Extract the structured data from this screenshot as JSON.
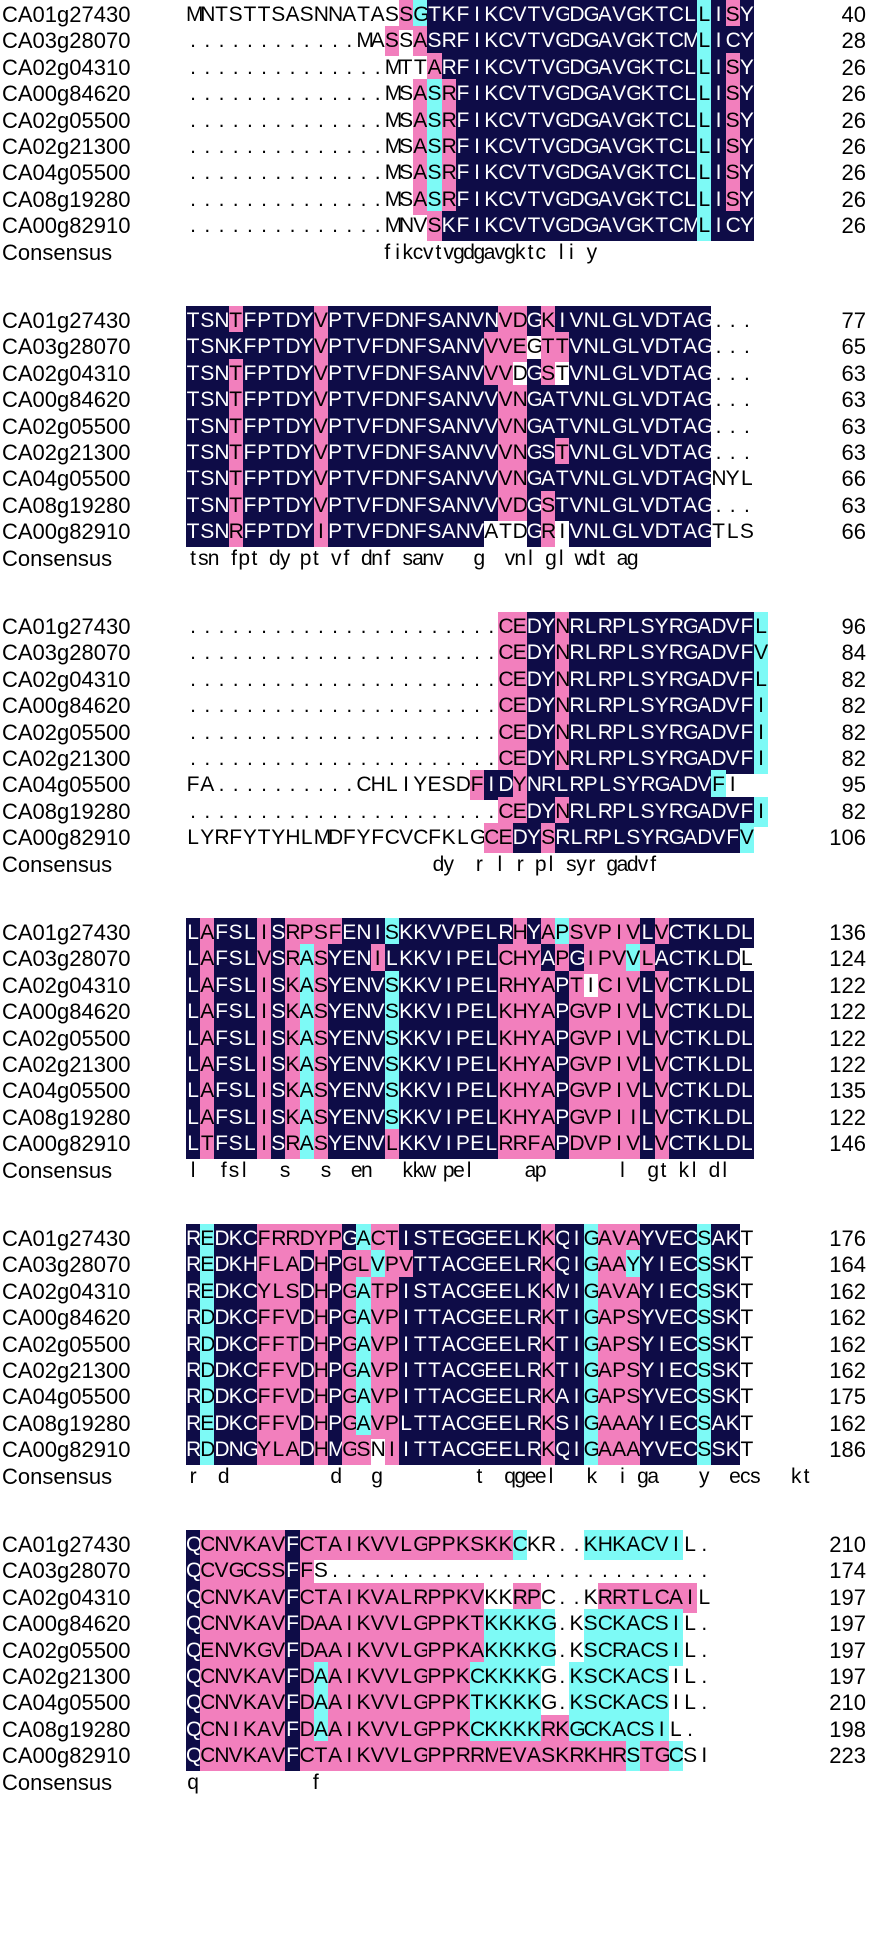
{
  "colors": {
    "identical": "#0e0c47",
    "high_similarity": "#f27fbd",
    "medium_similarity": "#7dfaf6",
    "background": "#ffffff"
  },
  "legend_key": "k = navy (identical), p = pink, c = cyan, n = none",
  "blocks": [
    {
      "rows": [
        {
          "name": "CA01g27430",
          "seq": "MNTSTTSASNNATASSGTKFIKCVTVGDGAVGKTCLLISY",
          "shade": "nnnnnnnnnnnnnnnpckkkkkkkkkkkkkkkkkkkckpk",
          "num": "40"
        },
        {
          "name": "CA03g28070",
          "seq": "............MASSASRFIKCVTVGDGAVGKTCMLICY",
          "shade": "nnnnnnnnnnnnnnpnpkkkkkkkkkkkkkkkkkkkckkk",
          "num": "28"
        },
        {
          "name": "CA02g04310",
          "seq": "..............MTTARFIKCVTVGDGAVGKTCLLISY",
          "shade": "nnnnnnnnnnnnnnnnnpkkkkkkkkkkkkkkkkkkckpk",
          "num": "26"
        },
        {
          "name": "CA00g84620",
          "seq": "..............MSASRFIKCVTVGDGAVGKTCLLISY",
          "shade": "nnnnnnnnnnnnnnnnpcpkkkkkkkkkkkkkkkkkckpk",
          "num": "26"
        },
        {
          "name": "CA02g05500",
          "seq": "..............MSASRFIKCVTVGDGAVGKTCLLISY",
          "shade": "nnnnnnnnnnnnnnnnpcpkkkkkkkkkkkkkkkkkckpk",
          "num": "26"
        },
        {
          "name": "CA02g21300",
          "seq": "..............MSASRFIKCVTVGDGAVGKTCLLISY",
          "shade": "nnnnnnnnnnnnnnnnpcpkkkkkkkkkkkkkkkkkckpk",
          "num": "26"
        },
        {
          "name": "CA04g05500",
          "seq": "..............MSASRFIKCVTVGDGAVGKTCLLISY",
          "shade": "nnnnnnnnnnnnnnnnpcpkkkkkkkkkkkkkkkkkckpk",
          "num": "26"
        },
        {
          "name": "CA08g19280",
          "seq": "..............MSASRFIKCVTVGDGAVGKTCLLISY",
          "shade": "nnnnnnnnnnnnnnnnpcpkkkkkkkkkkkkkkkkkckpk",
          "num": "26"
        },
        {
          "name": "CA00g82910",
          "seq": "..............MNVSKFIKCVTVGDGAVGKTCMLICY",
          "shade": "nnnnnnnnnnnnnnnnnpkkkkkkkkkkkkkkkkkkckkk",
          "num": "26"
        }
      ],
      "consensus": "                   fikcvtvgdgavgktc li y"
    },
    {
      "rows": [
        {
          "name": "CA01g27430",
          "seq": "TSNTFPTDYVPTVFDNFSANVNVDGKIVNLGLVDTAG...",
          "shade": "kkkpkkkkkpkkkkkkkkkkkkppkpkkkkkkkkkkknnn",
          "num": "77"
        },
        {
          "name": "CA03g28070",
          "seq": "TSNKFPTDYVPTVFDNFSANVVVEGTTVNLGLVDTAG...",
          "shade": "kkkkkkkkkpkkkkkkkkkkkpppnppkkkkkkkkkknnn",
          "num": "65"
        },
        {
          "name": "CA02g04310",
          "seq": "TSNTFPTDYVPTVFDNFSANVVVDGSTVNLGLVDTAG...",
          "shade": "kkkpkkkkkpkkkkkkkkkkkppnkpnkkkkkkkkkknnn",
          "num": "63"
        },
        {
          "name": "CA00g84620",
          "seq": "TSNTFPTDYVPTVFDNFSANVVVNGATVNLGLVDTAG...",
          "shade": "kkkpkkkkkpkkkkkkkkkkkkppkkkkkkkkkkkkknnn",
          "num": "63"
        },
        {
          "name": "CA02g05500",
          "seq": "TSNTFPTDYVPTVFDNFSANVVVNGATVNLGLVDTAG...",
          "shade": "kkkpkkkkkpkkkkkkkkkkkkppkkkkkkkkkkkkknnn",
          "num": "63"
        },
        {
          "name": "CA02g21300",
          "seq": "TSNTFPTDYVPTVFDNFSANVVVNGSTVNLGLVDTAG...",
          "shade": "kkkpkkkkkpkkkkkkkkkkkkppkkpkkkkkkkkkknnn",
          "num": "63"
        },
        {
          "name": "CA04g05500",
          "seq": "TSNTFPTDYVPTVFDNFSANVVVNGATVNLGLVDTAGNYL",
          "shade": "kkkpkkkkkpkkkkkkkkkkkkppkkkkkkkkkkkkknnn",
          "num": "66"
        },
        {
          "name": "CA08g19280",
          "seq": "TSNTFPTDYVPTVFDNFSANVVVDGSTVNLGLVDTAG...",
          "shade": "kkkpkkkkkpkkkkkkkkkkkkppkpkkkkkkkkkkknnn",
          "num": "63"
        },
        {
          "name": "CA00g82910",
          "seq": "TSNRFPTDYIPTVFDNFSANVATDGRIVNLGLVDTAGTLS",
          "shade": "kkkpkkkkkpkkkkkkkkkkknnnkpnkkkkkkkkkknnn",
          "num": "66"
        }
      ],
      "consensus": "tsn fpt dy pt vf dnf sanv   g  vnl gl wdt ag"
    },
    {
      "rows": [
        {
          "name": "CA01g27430",
          "seq": "......................CEDYNRLRPLSYRGADVFL",
          "shade": "nnnnnnnnnnnnnnnnnnnnnnppkkpkkkkkkkkkkkkkc",
          "num": "96"
        },
        {
          "name": "CA03g28070",
          "seq": "......................CEDYNRLRPLSYRGADVFV",
          "shade": "nnnnnnnnnnnnnnnnnnnnnnppkkpkkkkkkkkkkkkkc",
          "num": "84"
        },
        {
          "name": "CA02g04310",
          "seq": "......................CEDYNRLRPLSYRGADVFL",
          "shade": "nnnnnnnnnnnnnnnnnnnnnnppkkpkkkkkkkkkkkkkc",
          "num": "82"
        },
        {
          "name": "CA00g84620",
          "seq": "......................CEDYNRLRPLSYRGADVFI",
          "shade": "nnnnnnnnnnnnnnnnnnnnnnppkkpkkkkkkkkkkkkkc",
          "num": "82"
        },
        {
          "name": "CA02g05500",
          "seq": "......................CEDYNRLRPLSYRGADVFI",
          "shade": "nnnnnnnnnnnnnnnnnnnnnnppkkpkkkkkkkkkkkkkc",
          "num": "82"
        },
        {
          "name": "CA02g21300",
          "seq": "......................CEDYNRLRPLSYRGADVFI",
          "shade": "nnnnnnnnnnnnnnnnnnnnnnppkkpkkkkkkkkkkkkkc",
          "num": "82"
        },
        {
          "name": "CA04g05500",
          "seq": "FA..........CHLIYESDFIDYNRLRPLSYRGADVFI",
          "shade": "nnnnnnnnnnnnnnnnnnnnpkkpkkkkkkkkkkkkkc",
          "num": "95"
        },
        {
          "name": "CA08g19280",
          "seq": "......................CEDYNRLRPLSYRGADVFI",
          "shade": "nnnnnnnnnnnnnnnnnnnnnnppkkpkkkkkkkkkkkkkc",
          "num": "82"
        },
        {
          "name": "CA00g82910",
          "seq": "LYRFYTYHLMDFYFCVCFKLGCEDYSRLRPLSYRGADVFV",
          "shade": "nnnnnnnnnnnnnnnnnnnnnppkkpkkkkkkkkkkkkkc",
          "num": "106"
        }
      ],
      "consensus": "                        dy  r l r pl syr gadvf"
    },
    {
      "rows": [
        {
          "name": "CA01g27430",
          "seq": "LAFSLISRPSFENISKKVVPELRHYAPSVPIVLVCTKLDL",
          "shade": "kpkkkpkppppkkkckkkkkkkkpkpcpppppkpkkkkkk",
          "num": "136"
        },
        {
          "name": "CA03g28070",
          "seq": "LAFSLVSRASYENILKKVIPELCHYAPGIPVVLACTKLDL",
          "shade": "kpkkkpkpcpkkkpkkkkkkkkpppkpkpppcpkkkkkk",
          "num": "124"
        },
        {
          "name": "CA02g04310",
          "seq": "LAFSLISKASYENVSKKVIPELRHYAPTICIVLVCTKLDL",
          "shade": "kpkkkpkpcpkkkkckkkkkkkppppkpnpppkpkkkkkk",
          "num": "122"
        },
        {
          "name": "CA00g84620",
          "seq": "LAFSLISKASYENVSKKVIPELKHYAPGVPIVLVCTKLDL",
          "shade": "kpkkkpkpcpkkkkckkkkkkkppppkpppppkpkkkkkk",
          "num": "122"
        },
        {
          "name": "CA02g05500",
          "seq": "LAFSLISKASYENVSKKVIPELKHYAPGVPIVLVCTKLDL",
          "shade": "kpkkkpkpcpkkkkckkkkkkkppppkpppppkpkkkkkk",
          "num": "122"
        },
        {
          "name": "CA02g21300",
          "seq": "LAFSLISKASYENVSKKVIPELKHYAPGVPIVLVCTKLDL",
          "shade": "kpkkkpkpcpkkkkckkkkkkkppppkpppppkpkkkkkk",
          "num": "122"
        },
        {
          "name": "CA04g05500",
          "seq": "LAFSLISKASYENVSKKVIPELKHYAPGVPIVLVCTKLDL",
          "shade": "kpkkkpkpcpkkkkckkkkkkkppppkpppppkpkkkkkk",
          "num": "135"
        },
        {
          "name": "CA08g19280",
          "seq": "LAFSLISKASYENVSKKVIPELKHYAPGVPIILVCTKLDL",
          "shade": "kpkkkpkpcpkkkkckkkkkkkppppkpppppkpkkkkkk",
          "num": "122"
        },
        {
          "name": "CA00g82910",
          "seq": "LTFSLISRASYENVLKKVIPELRRFAPDVPIVLVCTKLDL",
          "shade": "kpkkkpkpcpkkkkpkkkkkkkppppkpppppkpkkkkkk",
          "num": "146"
        }
      ],
      "consensus": "l  fsl   s   s  en   kkw pel     ap       l  gt kl dl"
    },
    {
      "rows": [
        {
          "name": "CA01g27430",
          "seq": "REDKCFRRDYPGACTISTEGGEELKKQIGAVAYVECSAKT",
          "shade": "kckkkppppppkcppkkkkkkkkkkpkkcpppkkkkckk",
          "num": "176"
        },
        {
          "name": "CA03g28070",
          "seq": "REDKHFLADHPGLVPVTTACGEELRKQIGAAYYIECSSKT",
          "shade": "kckkkpppkpkppcppkkkkkkkkkpkkcppckkkkckk",
          "num": "164"
        },
        {
          "name": "CA02g04310",
          "seq": "REDKCYLSDHPGATPISTACGEELKKMIGAVAYIECSSKT",
          "shade": "kckkkpppkpkpcppkkkkkkkkkkpkkcpppkkkkckk",
          "num": "162"
        },
        {
          "name": "CA00g84620",
          "seq": "RDDKCFFVDHPGAVPITTACGEELRKTIGAPSYVECSSKT",
          "shade": "kckkkpppkpkpcppkkkkkkkkkkpkkcpppkkkkckk",
          "num": "162"
        },
        {
          "name": "CA02g05500",
          "seq": "RDDKCFFTDHPGAVPITTACGEELRKTIGAPSYIECSSKT",
          "shade": "kckkkpppkpkpcppkkkkkkkkkkpkkcpppkkkkckk",
          "num": "162"
        },
        {
          "name": "CA02g21300",
          "seq": "RDDKCFFVDHPGAVPITTACGEELRKTIGAPSYIECSSKT",
          "shade": "kckkkpppkpkpcppkkkkkkkkkkpkkcpppkkkkckk",
          "num": "162"
        },
        {
          "name": "CA04g05500",
          "seq": "RDDKCFFVDHPGAVPITTACGEELRKAIGAPSYVECSSKT",
          "shade": "kckkkpppkpkpcppkkkkkkkkkkpkkcpppkkkkckk",
          "num": "175"
        },
        {
          "name": "CA08g19280",
          "seq": "REDKCFFVDHPGAVPLTTACGEELRKSIGAAAYIECSAKT",
          "shade": "kckkkpppkpkpcppkkkkkkkkkkpkkcpppkkkkckk",
          "num": "162"
        },
        {
          "name": "CA00g82910",
          "seq": "RDDNGYLADHMGSNIITTACGEELRKQIGAAAYVECSSKT",
          "shade": "kckkkpppkpkppnpkkkkkkkkkkpkkcpppkkkkckk",
          "num": "186"
        }
      ],
      "consensus": "r  d          d   g         t  qgeel   k  i ga    y  ecs   kt"
    },
    {
      "rows": [
        {
          "name": "CA01g27430",
          "seq": "QCNVKAVFCTAIKVVLGPPKSKKCKR..KHKACVIL.",
          "shade": "kppppppkpppppppppppppppcnnnnccccccc",
          "num": "210"
        },
        {
          "name": "CA03g28070",
          "seq": "QCVGCSSFFS...........................",
          "shade": "kppppppkpnnnnnnnnnnnnnnnnnnnnnnnnnnn",
          "num": "174"
        },
        {
          "name": "CA02g04310",
          "seq": "QCNVKAVFCTAIKVALRPPKVKKRPC..KRRTLCAIL",
          "shade": "kppppppkpppppppppppppnnppnnnnppppppp",
          "num": "197"
        },
        {
          "name": "CA00g84620",
          "seq": "QCNVKAVFDAAIKVVLGPPKTKKKKG.KSCKACSIL.",
          "shade": "kppppppkpppppppppppppcccccnnccccccc",
          "num": "197"
        },
        {
          "name": "CA02g05500",
          "seq": "QENVKGVFDAAIKVVLGPPKAKKKKG.KSCRACSIL.",
          "shade": "kppppppkpppppppppppppcccccnnccccccc",
          "num": "197"
        },
        {
          "name": "CA02g21300",
          "seq": "QCNVKAVFDAAIKVVLGPPKCKKKKG.KSCKACSIL.",
          "shade": "kppppppkpcppppppppppcccccnnccccccc",
          "num": "197"
        },
        {
          "name": "CA04g05500",
          "seq": "QCNVKAVFDAAIKVVLGPPKTKKKKG.KSCKACSIL.",
          "shade": "kppppppkpcppppppppppcccccnnccccccc",
          "num": "210"
        },
        {
          "name": "CA08g19280",
          "seq": "QCNIKAVFDAAIKVVLGPPKCKKKKRKGCKACSIL.",
          "shade": "kppppppkpcppppppppppcccccppcccccccn",
          "num": "198"
        },
        {
          "name": "CA00g82910",
          "seq": "QCNVKAVFCTAIKVVLGPPRRMEVASKRKHRSTGCSI",
          "shade": "kppppppkpppppppppppppppppppppppcppcn",
          "num": "223"
        }
      ],
      "consensus": "q           f"
    }
  ],
  "consensus_label": "Consensus"
}
